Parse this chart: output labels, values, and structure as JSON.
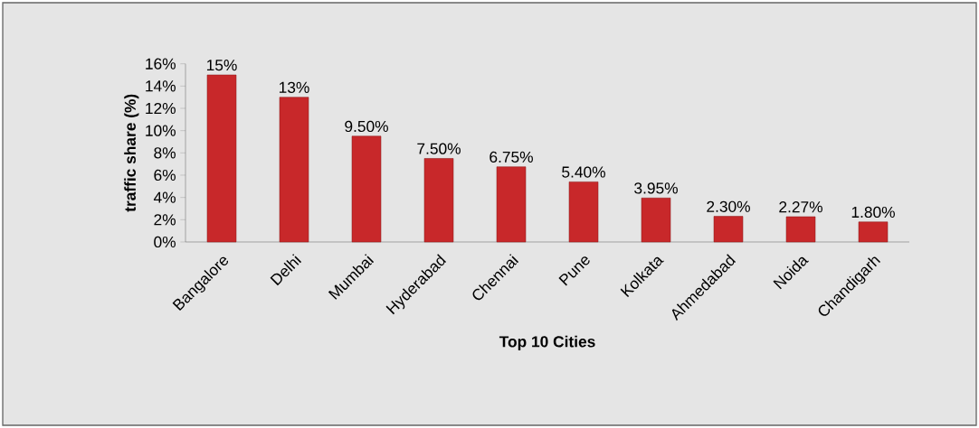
{
  "chart_data": {
    "type": "bar",
    "xlabel": "Top 10 Cities",
    "ylabel": "traffic share (%)",
    "categories": [
      "Bangalore",
      "Delhi",
      "Mumbai",
      "Hyderabad",
      "Chennai",
      "Pune",
      "Kolkata",
      "Ahmedabad",
      "Noida",
      "Chandigarh"
    ],
    "values": [
      15,
      13,
      9.5,
      7.5,
      6.75,
      5.4,
      3.95,
      2.3,
      2.27,
      1.8
    ],
    "value_labels": [
      "15%",
      "13%",
      "9.50%",
      "7.50%",
      "6.75%",
      "5.40%",
      "3.95%",
      "2.30%",
      "2.27%",
      "1.80%"
    ],
    "color": "#c8282a",
    "ylim": [
      0,
      16
    ],
    "yticks": [
      {
        "value": 0,
        "label": "0%"
      },
      {
        "value": 2,
        "label": "2%"
      },
      {
        "value": 4,
        "label": "4%"
      },
      {
        "value": 6,
        "label": "6%"
      },
      {
        "value": 8,
        "label": "8%"
      },
      {
        "value": 10,
        "label": "10%"
      },
      {
        "value": 12,
        "label": "12%"
      },
      {
        "value": 14,
        "label": "14%"
      },
      {
        "value": 16,
        "label": "16%"
      }
    ],
    "grid": false
  }
}
